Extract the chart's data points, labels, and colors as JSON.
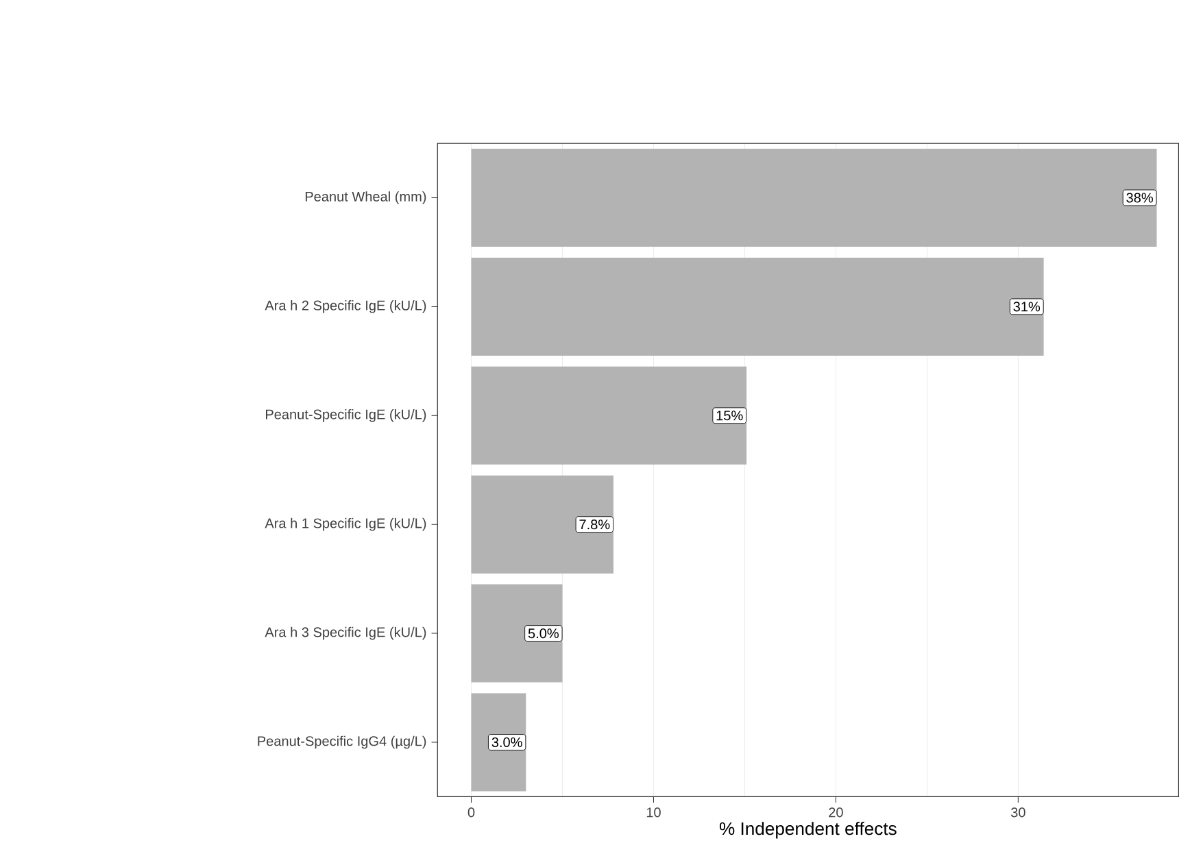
{
  "chart_data": {
    "type": "bar",
    "orientation": "horizontal",
    "xlabel": "% Independent effects",
    "categories": [
      "Peanut Wheal (mm)",
      "Ara h 2 Specific IgE (kU/L)",
      "Peanut-Specific IgE (kU/L)",
      "Ara h 1 Specific IgE (kU/L)",
      "Ara h 3 Specific IgE (kU/L)",
      "Peanut-Specific IgG4 (µg/L)"
    ],
    "values": [
      37.6,
      31.4,
      15.1,
      7.8,
      5.0,
      3.0
    ],
    "value_labels": [
      "38%",
      "31%",
      "15%",
      "7.8%",
      "5.0%",
      "3.0%"
    ],
    "color": "#b3b3b3",
    "xlim": [
      -1.85,
      38.8
    ],
    "xticks": [
      0,
      10,
      20,
      30
    ],
    "grid": "x"
  }
}
